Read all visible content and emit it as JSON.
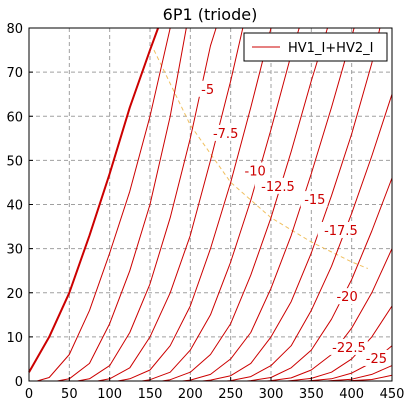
{
  "chart_data": {
    "type": "line",
    "title": "6P1  (triode)",
    "xlabel": "",
    "ylabel": "",
    "xlim": [
      0,
      450
    ],
    "ylim": [
      0,
      80
    ],
    "xticks": [
      "0",
      "50",
      "100",
      "150",
      "200",
      "250",
      "300",
      "350",
      "400",
      "450"
    ],
    "yticks": [
      "0",
      "10",
      "20",
      "30",
      "40",
      "50",
      "60",
      "70",
      "80"
    ],
    "grid": true,
    "legend": {
      "position": "top-right",
      "entries": [
        "HV1_I+HV2_I"
      ]
    },
    "colors": {
      "series": "#cc0000",
      "load_line": "#f0c060",
      "grid": "#a0a0a0"
    },
    "curve_labels": [
      "-5",
      "-7.5",
      "-10",
      "-12.5",
      "-15",
      "-17.5",
      "-20",
      "-22.5",
      "-25"
    ],
    "series": [
      {
        "name": "HV1_I+HV2_I",
        "grid_voltage": "0",
        "x": [
          0,
          25,
          50,
          75,
          100,
          125,
          150,
          160
        ],
        "y": [
          2,
          10,
          20,
          33,
          47,
          62,
          75,
          80
        ]
      },
      {
        "grid_voltage": "-2.5",
        "x": [
          10,
          25,
          50,
          75,
          100,
          125,
          150,
          175
        ],
        "y": [
          0,
          0.8,
          6,
          16,
          29,
          43,
          60,
          80
        ]
      },
      {
        "grid_voltage": "-5",
        "x": [
          35,
          50,
          75,
          100,
          125,
          150,
          175,
          195
        ],
        "y": [
          0,
          0.5,
          4,
          13,
          25,
          40,
          60,
          80
        ]
      },
      {
        "grid_voltage": "-7.5",
        "x": [
          60,
          75,
          100,
          125,
          150,
          175,
          200,
          225,
          232
        ],
        "y": [
          0,
          0.5,
          3.5,
          11,
          22,
          37,
          55,
          76,
          80
        ]
      },
      {
        "grid_voltage": "-10",
        "x": [
          85,
          100,
          125,
          150,
          175,
          200,
          225,
          250,
          265
        ],
        "y": [
          0,
          0.5,
          3,
          10,
          20,
          33,
          50,
          68,
          80
        ]
      },
      {
        "grid_voltage": "-12.5",
        "x": [
          110,
          125,
          150,
          175,
          200,
          225,
          250,
          275,
          300
        ],
        "y": [
          0,
          0.5,
          2.5,
          8,
          17,
          30,
          45,
          62,
          80
        ]
      },
      {
        "grid_voltage": "-15",
        "x": [
          140,
          150,
          175,
          200,
          225,
          250,
          275,
          300,
          325,
          335
        ],
        "y": [
          0,
          0.3,
          2,
          7,
          15,
          27,
          41,
          57,
          74,
          80
        ]
      },
      {
        "grid_voltage": "-17.5",
        "x": [
          165,
          175,
          200,
          225,
          250,
          275,
          300,
          325,
          350,
          370
        ],
        "y": [
          0,
          0.3,
          2,
          6,
          13,
          24,
          37,
          52,
          68,
          80
        ]
      },
      {
        "grid_voltage": "-20",
        "x": [
          190,
          200,
          225,
          250,
          275,
          300,
          325,
          350,
          375,
          400,
          403
        ],
        "y": [
          0,
          0.2,
          1.5,
          5,
          11,
          21,
          33,
          47,
          62,
          78,
          80
        ]
      },
      {
        "grid_voltage": "-22.5",
        "x": [
          215,
          225,
          250,
          275,
          300,
          325,
          350,
          375,
          400,
          425,
          435
        ],
        "y": [
          0,
          0.2,
          1.2,
          4,
          10,
          18,
          29,
          42,
          56,
          72,
          80
        ]
      },
      {
        "grid_voltage": "-25",
        "x": [
          245,
          250,
          275,
          300,
          325,
          350,
          375,
          400,
          425,
          450
        ],
        "y": [
          0,
          0.1,
          1,
          3.5,
          8,
          16,
          26,
          38,
          51,
          65
        ]
      },
      {
        "grid_voltage": "-27.5",
        "x": [
          270,
          275,
          300,
          325,
          350,
          375,
          400,
          425,
          450
        ],
        "y": [
          0,
          0.1,
          0.8,
          3,
          7,
          14,
          23,
          34,
          46
        ]
      },
      {
        "grid_voltage": "-30",
        "x": [
          295,
          300,
          325,
          350,
          375,
          400,
          425,
          450
        ],
        "y": [
          0,
          0.1,
          0.7,
          2.5,
          6,
          12,
          20,
          30
        ]
      },
      {
        "grid_voltage": "-32.5",
        "x": [
          320,
          325,
          350,
          375,
          400,
          425,
          450
        ],
        "y": [
          0,
          0.1,
          0.6,
          2,
          5,
          10,
          17
        ]
      },
      {
        "grid_voltage": "-35",
        "x": [
          345,
          350,
          375,
          400,
          425,
          450
        ],
        "y": [
          0,
          0.1,
          0.5,
          1.8,
          4.2,
          8
        ]
      },
      {
        "grid_voltage": "-37.5",
        "x": [
          370,
          375,
          400,
          425,
          450
        ],
        "y": [
          0,
          0.1,
          0.4,
          1.5,
          3.5
        ]
      },
      {
        "grid_voltage": "-40",
        "x": [
          395,
          400,
          425,
          450
        ],
        "y": [
          0,
          0.1,
          0.35,
          1.3
        ]
      }
    ],
    "load_line": {
      "x": [
        155,
        200,
        250,
        300,
        350,
        400,
        420
      ],
      "y": [
        75,
        58,
        45,
        37,
        31.5,
        27,
        25.5
      ]
    }
  }
}
